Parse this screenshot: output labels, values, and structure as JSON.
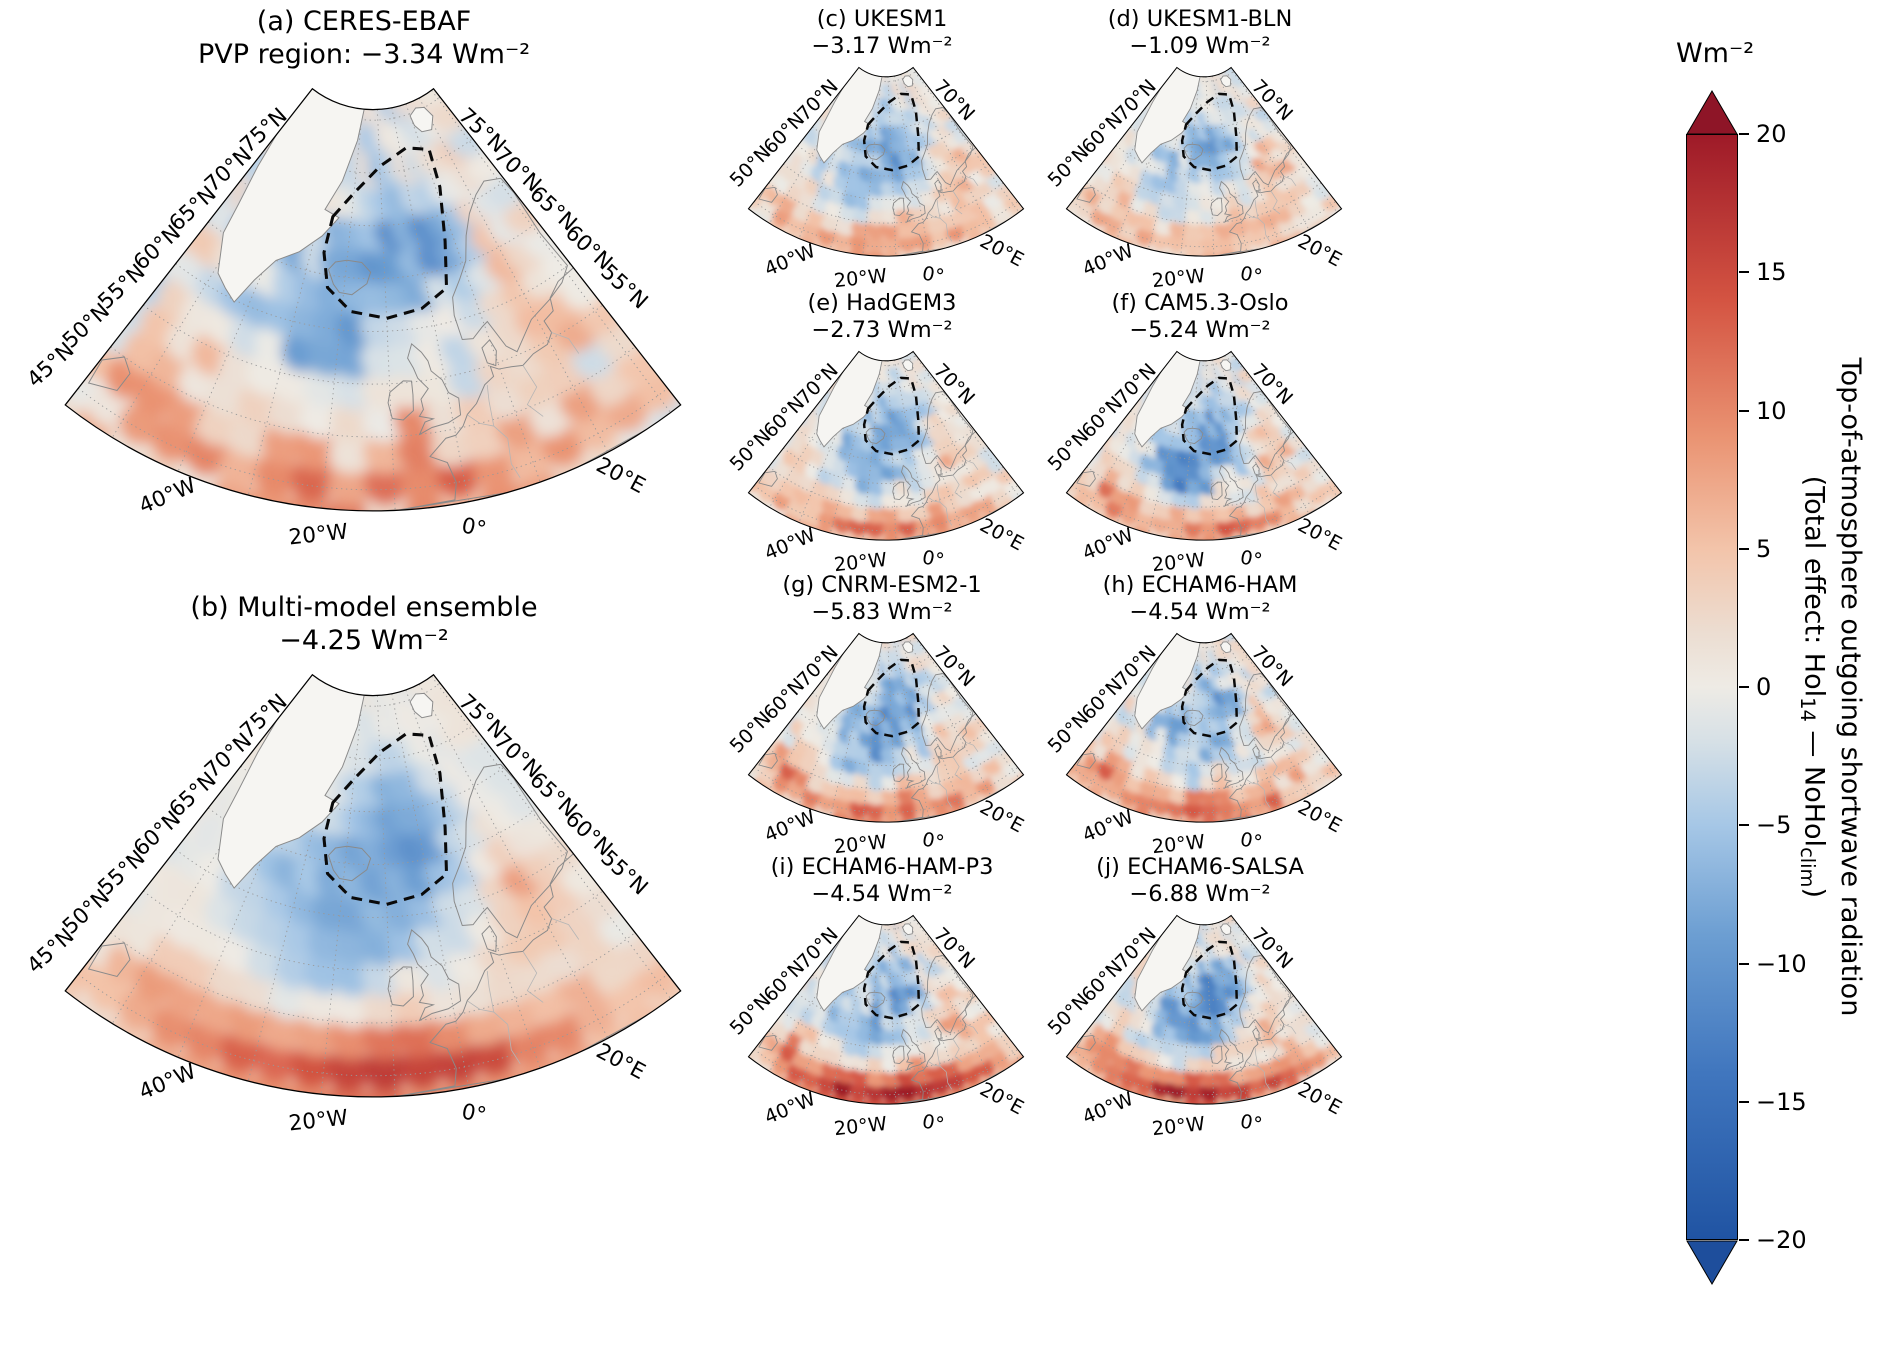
{
  "figure": {
    "panels": [
      {
        "id": "a",
        "title": "(a) CERES-EBAF",
        "subtitle": "PVP region: −3.34 Wm⁻²",
        "value_wm2": -3.34,
        "size": "large"
      },
      {
        "id": "b",
        "title": "(b) Multi-model ensemble",
        "subtitle": "−4.25 Wm⁻²",
        "value_wm2": -4.25,
        "size": "large"
      },
      {
        "id": "c",
        "title": "(c) UKESM1",
        "subtitle": "−3.17 Wm⁻²",
        "value_wm2": -3.17,
        "size": "small"
      },
      {
        "id": "d",
        "title": "(d) UKESM1-BLN",
        "subtitle": "−1.09 Wm⁻²",
        "value_wm2": -1.09,
        "size": "small"
      },
      {
        "id": "e",
        "title": "(e) HadGEM3",
        "subtitle": "−2.73 Wm⁻²",
        "value_wm2": -2.73,
        "size": "small"
      },
      {
        "id": "f",
        "title": "(f) CAM5.3-Oslo",
        "subtitle": "−5.24 Wm⁻²",
        "value_wm2": -5.24,
        "size": "small"
      },
      {
        "id": "g",
        "title": "(g) CNRM-ESM2-1",
        "subtitle": "−5.83 Wm⁻²",
        "value_wm2": -5.83,
        "size": "small"
      },
      {
        "id": "h",
        "title": "(h) ECHAM6-HAM",
        "subtitle": "−4.54 Wm⁻²",
        "value_wm2": -4.54,
        "size": "small"
      },
      {
        "id": "i",
        "title": "(i) ECHAM6-HAM-P3",
        "subtitle": "−4.54 Wm⁻²",
        "value_wm2": -4.54,
        "size": "small"
      },
      {
        "id": "j",
        "title": "(j) ECHAM6-SALSA",
        "subtitle": "−6.88 Wm⁻²",
        "value_wm2": -6.88,
        "size": "small"
      }
    ],
    "axes": {
      "lat_labels_large_left": [
        "75°N",
        "70°N",
        "65°N",
        "60°N",
        "55°N",
        "50°N",
        "45°N"
      ],
      "lat_labels_large_right": [
        "75°N",
        "70°N",
        "65°N",
        "60°N",
        "55°N"
      ],
      "lat_labels_small_left": [
        "70°N",
        "60°N",
        "50°N"
      ],
      "lat_labels_small_right": [
        "70°N"
      ],
      "lon_labels": [
        "40°W",
        "20°W",
        "0°",
        "20°E"
      ]
    },
    "colorbar": {
      "unit": "Wm⁻²",
      "ticks": [
        "20",
        "15",
        "10",
        "5",
        "0",
        "−5",
        "−10",
        "−15",
        "−20"
      ],
      "tick_values": [
        20,
        15,
        10,
        5,
        0,
        -5,
        -10,
        -15,
        -20
      ],
      "vmin": -20,
      "vmax": 20,
      "color_max": "#9e1a28",
      "color_zero": "#eeebe5",
      "color_min": "#2054a3",
      "label_line1": "Top-of-atmosphere outgoing shortwave radiation",
      "label_line2_parts": {
        "pre": "(Total effect: Hol",
        "sub1": "14",
        "mid": " — NoHol",
        "sub2": "clim",
        "post": ")"
      }
    },
    "region_outline_note": "PVP region (dashed outline)"
  },
  "chart_data": {
    "type": "heatmap",
    "title": "Top-of-atmosphere outgoing shortwave radiation (Total effect: Hol14 − NoHolclim)",
    "units": "Wm⁻²",
    "color_scale": {
      "min": -20,
      "max": 20,
      "ticks": [
        20,
        15,
        10,
        5,
        0,
        -5,
        -10,
        -15,
        -20
      ],
      "palette": "diverging red-white-blue, arrows beyond ±20"
    },
    "map_extent": {
      "lon_labels": [
        "40°W",
        "20°W",
        "0°",
        "20°E"
      ],
      "lat_labels": [
        "45°N",
        "50°N",
        "55°N",
        "60°N",
        "65°N",
        "70°N",
        "75°N"
      ]
    },
    "region": "PVP region shown as dashed outline over the Nordic Seas / Iceland sector",
    "panels": [
      {
        "label": "(a)",
        "name": "CERES-EBAF",
        "regional_mean_wm2": -3.34,
        "note": "PVP region"
      },
      {
        "label": "(b)",
        "name": "Multi-model ensemble",
        "regional_mean_wm2": -4.25
      },
      {
        "label": "(c)",
        "name": "UKESM1",
        "regional_mean_wm2": -3.17
      },
      {
        "label": "(d)",
        "name": "UKESM1-BLN",
        "regional_mean_wm2": -1.09
      },
      {
        "label": "(e)",
        "name": "HadGEM3",
        "regional_mean_wm2": -2.73
      },
      {
        "label": "(f)",
        "name": "CAM5.3-Oslo",
        "regional_mean_wm2": -5.24
      },
      {
        "label": "(g)",
        "name": "CNRM-ESM2-1",
        "regional_mean_wm2": -5.83
      },
      {
        "label": "(h)",
        "name": "ECHAM6-HAM",
        "regional_mean_wm2": -4.54
      },
      {
        "label": "(i)",
        "name": "ECHAM6-HAM-P3",
        "regional_mean_wm2": -4.54
      },
      {
        "label": "(j)",
        "name": "ECHAM6-SALSA",
        "regional_mean_wm2": -6.88
      }
    ]
  }
}
